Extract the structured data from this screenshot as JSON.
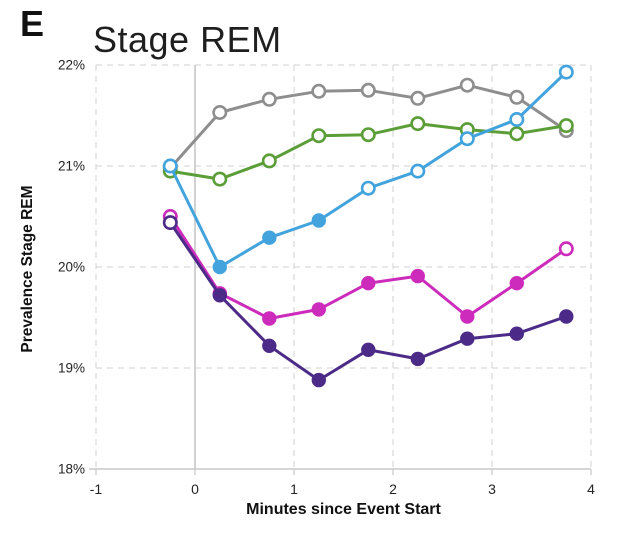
{
  "panel_label": "E",
  "chart_data": {
    "type": "line",
    "title": "Stage REM",
    "xlabel": "Minutes since Event Start",
    "ylabel": "Prevalence Stage REM",
    "xlim": [
      -1,
      4
    ],
    "ylim": [
      18,
      22
    ],
    "grid": "dashed",
    "legend": "none",
    "event_line_x": 0,
    "x_ticks": [
      {
        "value": -1,
        "label": "-1"
      },
      {
        "value": 0,
        "label": "0"
      },
      {
        "value": 1,
        "label": "1"
      },
      {
        "value": 2,
        "label": "2"
      },
      {
        "value": 3,
        "label": "3"
      },
      {
        "value": 4,
        "label": "4"
      }
    ],
    "y_ticks": [
      {
        "value": 18,
        "label": "18%"
      },
      {
        "value": 19,
        "label": "19%"
      },
      {
        "value": 20,
        "label": "20%"
      },
      {
        "value": 21,
        "label": "21%"
      },
      {
        "value": 22,
        "label": "22%"
      }
    ],
    "x": [
      -0.25,
      0.25,
      0.75,
      1.25,
      1.75,
      2.25,
      2.75,
      3.25,
      3.75
    ],
    "series": [
      {
        "name": "gray",
        "color": "#8E8E8E",
        "values": [
          20.98,
          21.53,
          21.66,
          21.74,
          21.75,
          21.67,
          21.8,
          21.68,
          21.35
        ],
        "marker_open": [
          true,
          true,
          true,
          true,
          true,
          true,
          true,
          true,
          true
        ]
      },
      {
        "name": "green",
        "color": "#5B9E38",
        "values": [
          20.95,
          20.87,
          21.05,
          21.3,
          21.31,
          21.42,
          21.36,
          21.32,
          21.4
        ],
        "marker_open": [
          true,
          true,
          true,
          true,
          true,
          true,
          true,
          true,
          true
        ]
      },
      {
        "name": "blue",
        "color": "#42A3DD",
        "values": [
          21.0,
          20.0,
          20.29,
          20.46,
          20.78,
          20.95,
          21.27,
          21.46,
          21.93
        ],
        "marker_open": [
          true,
          false,
          false,
          false,
          true,
          true,
          true,
          true,
          true
        ]
      },
      {
        "name": "magenta",
        "color": "#CD2BBC",
        "values": [
          20.5,
          19.74,
          19.49,
          19.58,
          19.84,
          19.91,
          19.51,
          19.84,
          20.18
        ],
        "marker_open": [
          true,
          false,
          false,
          false,
          false,
          false,
          false,
          false,
          true
        ]
      },
      {
        "name": "purple",
        "color": "#4C2B88",
        "values": [
          20.44,
          19.72,
          19.22,
          18.88,
          19.18,
          19.09,
          19.29,
          19.34,
          19.51
        ],
        "marker_open": [
          true,
          false,
          false,
          false,
          false,
          false,
          false,
          false,
          false
        ]
      }
    ]
  }
}
